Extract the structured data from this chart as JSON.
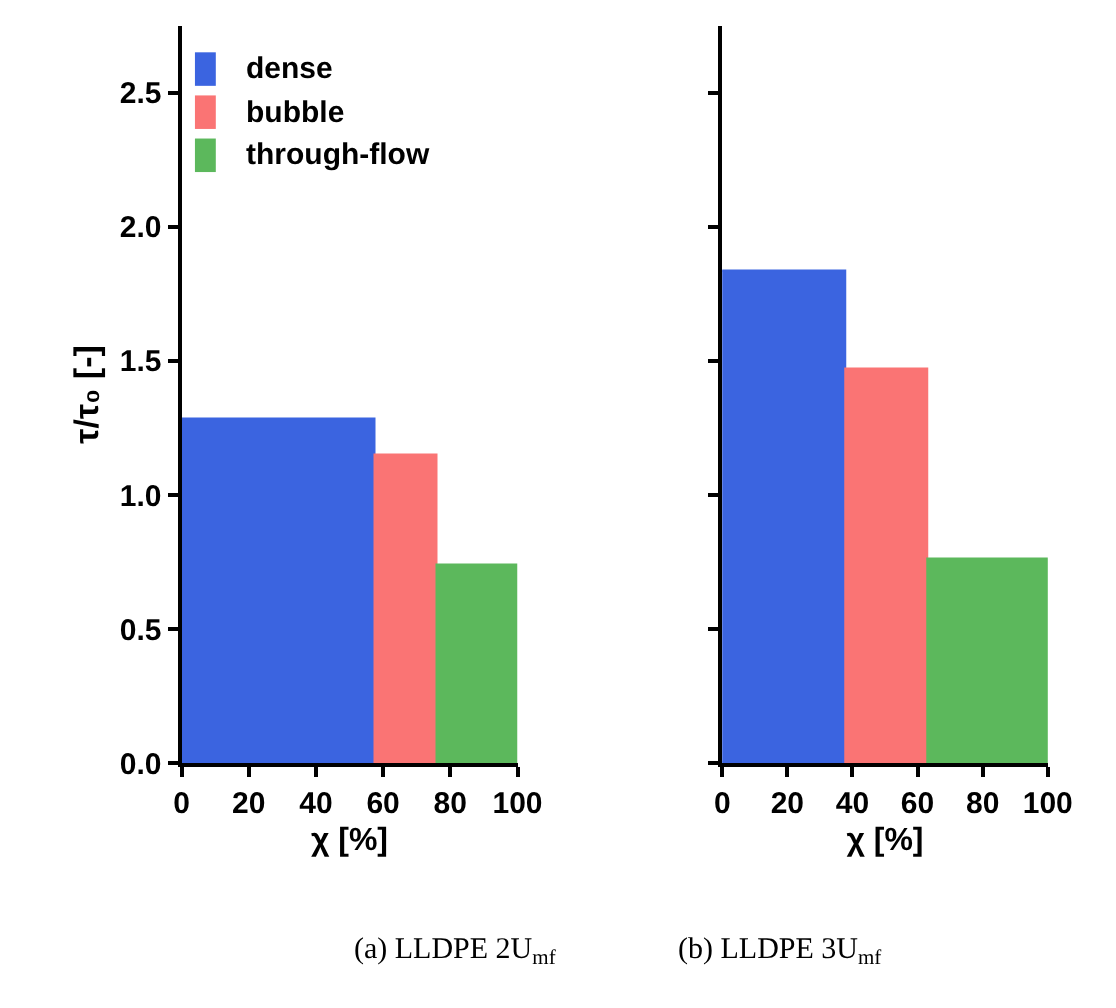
{
  "chart_data": [
    {
      "type": "histogram",
      "xlabel": "χ [%]",
      "ylabel": "τ/τ₀ [-]",
      "annotations": [
        "(a) LLDPE 2U$_{mf}$"
      ],
      "xlim": [
        0,
        100
      ],
      "xticks": [
        0,
        20,
        40,
        60,
        80,
        100
      ],
      "ylim": [
        0,
        2.75
      ],
      "yticks": [
        {
          "value": 0,
          "label": "0.0"
        },
        {
          "value": 0.5,
          "label": "0.5"
        },
        {
          "value": 1,
          "label": "1.0"
        },
        {
          "value": 1.5,
          "label": "1.5"
        },
        {
          "value": 2,
          "label": "2.0"
        },
        {
          "value": 2.5,
          "label": "2.5"
        }
      ],
      "legend": "top left",
      "bins": [
        0,
        58,
        76,
        100
      ],
      "series": [
        {
          "name": "dense",
          "color": "#3b64e0",
          "values": [
            1.28,
            null,
            null
          ]
        },
        {
          "name": "bubble",
          "color": "#fa7474",
          "values": [
            null,
            1.15,
            null
          ]
        },
        {
          "name": "through-flow",
          "color": "#5cb85c",
          "values": [
            null,
            null,
            0.74
          ]
        }
      ]
    },
    {
      "type": "histogram",
      "xlabel": "χ [%]",
      "annotations": [
        "(b) LLDPE 3U$_{mf}$"
      ],
      "xlim": [
        0,
        100
      ],
      "xticks": [
        0,
        20,
        40,
        60,
        80,
        100
      ],
      "ylim": [
        0,
        2.75
      ],
      "yticks": [
        {
          "value": 0,
          "label": null
        },
        {
          "value": 0.5,
          "label": null
        },
        {
          "value": 1,
          "label": null
        },
        {
          "value": 1.5,
          "label": null
        },
        {
          "value": 2,
          "label": null
        },
        {
          "value": 2.5,
          "label": null
        }
      ],
      "tick_labels": "x",
      "bins": [
        0,
        38,
        63,
        100
      ],
      "series": [
        {
          "color": "#3b64e0",
          "values": [
            1.83,
            null,
            null
          ]
        },
        {
          "color": "#fa7474",
          "values": [
            null,
            1.47,
            null
          ]
        },
        {
          "color": "#5cb85c",
          "values": [
            null,
            null,
            0.76
          ]
        }
      ]
    }
  ]
}
